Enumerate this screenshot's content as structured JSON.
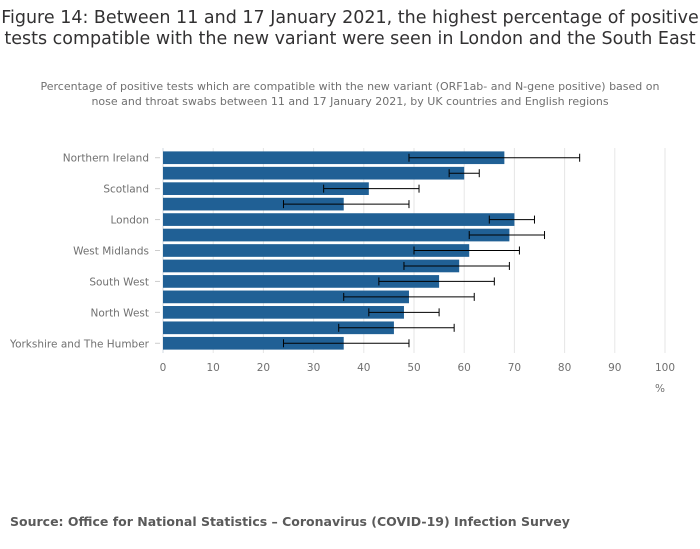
{
  "chart_data": {
    "type": "bar",
    "orientation": "horizontal",
    "title": "Figure 14: Between 11 and 17 January 2021, the highest percentage of positive tests compatible with the new variant were seen in London and the South East",
    "subtitle": "Percentage of positive tests which are compatible with the new variant (ORF1ab- and N-gene positive) based on nose and throat swabs between 11 and 17 January 2021, by UK countries and English regions",
    "xlabel": "%",
    "ylabel": "",
    "xlim": [
      0,
      100
    ],
    "xticks": [
      0,
      10,
      20,
      30,
      40,
      50,
      60,
      70,
      80,
      90,
      100
    ],
    "grid": true,
    "bar_color": "#206095",
    "categories": [
      "Northern Ireland",
      "",
      "Scotland",
      "",
      "London",
      "",
      "West Midlands",
      "",
      "South West",
      "",
      "North West",
      "",
      "Yorkshire and The Humber"
    ],
    "series": [
      {
        "name": "Percentage compatible with new variant",
        "values": [
          68,
          60,
          41,
          36,
          70,
          69,
          61,
          59,
          55,
          49,
          48,
          46,
          36
        ],
        "error_lower": [
          49,
          57,
          32,
          24,
          65,
          61,
          50,
          48,
          43,
          36,
          41,
          35,
          24
        ],
        "error_upper": [
          83,
          63,
          51,
          49,
          74,
          76,
          71,
          69,
          66,
          62,
          55,
          58,
          49
        ]
      }
    ],
    "source": "Source: Office for National Statistics – Coronavirus (COVID-19) Infection Survey"
  }
}
